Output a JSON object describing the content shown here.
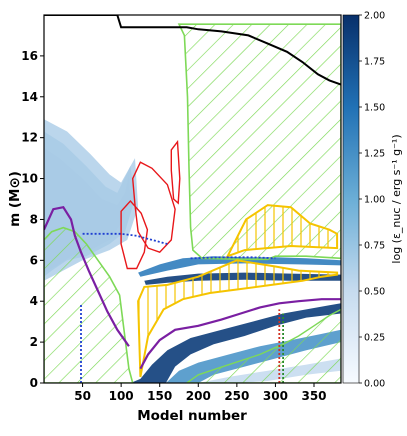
{
  "chart_data": {
    "type": "kippenhahn",
    "xlabel": "Model number",
    "ylabel": "m (M⊙)",
    "xlim": [
      0,
      385
    ],
    "ylim": [
      0,
      18
    ],
    "x_ticks": [
      50,
      100,
      150,
      200,
      250,
      300,
      350
    ],
    "y_ticks": [
      0,
      2,
      4,
      6,
      8,
      10,
      12,
      14,
      16
    ],
    "colorbar": {
      "label": "log (ε_nuc / erg s⁻¹ g⁻¹)",
      "range": [
        0.0,
        2.0
      ],
      "ticks": [
        "0.00",
        "0.25",
        "0.50",
        "0.75",
        "1.00",
        "1.25",
        "1.50",
        "1.75",
        "2.00"
      ],
      "colormap": "Blues"
    },
    "total_mass": {
      "color": "#000000",
      "points": [
        [
          0,
          18.0
        ],
        [
          95,
          18.0
        ],
        [
          100,
          17.4
        ],
        [
          185,
          17.4
        ],
        [
          200,
          17.3
        ],
        [
          230,
          17.2
        ],
        [
          265,
          17.0
        ],
        [
          290,
          16.6
        ],
        [
          315,
          16.2
        ],
        [
          335,
          15.7
        ],
        [
          355,
          15.1
        ],
        [
          370,
          14.8
        ],
        [
          385,
          14.6
        ]
      ]
    },
    "convective_envelope": {
      "color": "#7ed957",
      "hatch": "diagonal",
      "points": [
        [
          175,
          17.55
        ],
        [
          182,
          17.0
        ],
        [
          186,
          14.0
        ],
        [
          188,
          10.5
        ],
        [
          190,
          7.6
        ],
        [
          193,
          6.5
        ],
        [
          205,
          6.1
        ],
        [
          260,
          6.05
        ],
        [
          290,
          6.05
        ],
        [
          300,
          6.2
        ],
        [
          320,
          6.2
        ],
        [
          340,
          6.2
        ],
        [
          385,
          6.1
        ],
        [
          385,
          17.55
        ]
      ]
    },
    "convective_core": {
      "color": "#7ed957",
      "hatch": "diagonal",
      "points": [
        [
          0,
          0
        ],
        [
          0,
          7.0
        ],
        [
          10,
          7.4
        ],
        [
          25,
          7.6
        ],
        [
          40,
          7.4
        ],
        [
          55,
          6.8
        ],
        [
          70,
          6.0
        ],
        [
          85,
          5.2
        ],
        [
          98,
          4.3
        ],
        [
          110,
          0.7
        ],
        [
          115,
          0
        ]
      ]
    },
    "deep_convection": {
      "color": "#7ed957",
      "hatch": "diagonal",
      "points": [
        [
          185,
          0
        ],
        [
          200,
          0.4
        ],
        [
          240,
          0.9
        ],
        [
          280,
          1.4
        ],
        [
          310,
          1.9
        ],
        [
          330,
          2.3
        ],
        [
          350,
          2.8
        ],
        [
          370,
          3.3
        ],
        [
          385,
          3.6
        ],
        [
          385,
          0
        ]
      ]
    },
    "semiconvection": {
      "color": "#f5c400",
      "hatch": "vertical",
      "regions": [
        [
          [
            125,
            0.3
          ],
          [
            135,
            2.3
          ],
          [
            155,
            3.6
          ],
          [
            180,
            4.1
          ],
          [
            215,
            4.4
          ],
          [
            255,
            4.6
          ],
          [
            295,
            4.8
          ],
          [
            335,
            5.0
          ],
          [
            360,
            5.2
          ],
          [
            380,
            5.3
          ],
          [
            380,
            5.4
          ],
          [
            330,
            5.5
          ],
          [
            300,
            5.7
          ],
          [
            250,
            6.0
          ],
          [
            200,
            5.2
          ],
          [
            160,
            4.8
          ],
          [
            130,
            4.7
          ],
          [
            122,
            4.0
          ]
        ],
        [
          [
            238,
            6.2
          ],
          [
            262,
            8.0
          ],
          [
            274,
            8.3
          ],
          [
            290,
            8.7
          ],
          [
            320,
            8.6
          ],
          [
            345,
            7.8
          ],
          [
            370,
            7.5
          ],
          [
            380,
            7.3
          ],
          [
            380,
            6.6
          ],
          [
            320,
            6.7
          ],
          [
            260,
            6.5
          ]
        ]
      ]
    },
    "overshoot": {
      "color": "#e8171a",
      "regions": [
        [
          [
            115,
            10.0
          ],
          [
            125,
            10.8
          ],
          [
            140,
            10.5
          ],
          [
            160,
            9.7
          ],
          [
            170,
            8.5
          ],
          [
            165,
            7.0
          ],
          [
            150,
            6.4
          ],
          [
            135,
            6.6
          ],
          [
            122,
            7.4
          ],
          [
            118,
            8.7
          ]
        ],
        [
          [
            100,
            8.4
          ],
          [
            112,
            8.9
          ],
          [
            126,
            8.3
          ],
          [
            134,
            7.5
          ],
          [
            130,
            6.4
          ],
          [
            120,
            5.6
          ],
          [
            108,
            5.6
          ],
          [
            100,
            6.8
          ]
        ],
        [
          [
            165,
            11.4
          ],
          [
            173,
            11.8
          ],
          [
            176,
            10.0
          ],
          [
            174,
            8.8
          ],
          [
            168,
            9.0
          ],
          [
            165,
            10.4
          ]
        ]
      ]
    },
    "thermohaline": {
      "color": "#7a1fa2",
      "lines": [
        [
          [
            0,
            7.5
          ],
          [
            12,
            8.5
          ],
          [
            25,
            8.6
          ],
          [
            35,
            8.0
          ],
          [
            40,
            7.2
          ],
          [
            48,
            6.4
          ],
          [
            58,
            5.5
          ],
          [
            70,
            4.5
          ],
          [
            82,
            3.5
          ],
          [
            95,
            2.6
          ],
          [
            110,
            1.8
          ]
        ],
        [
          [
            125,
            0.7
          ],
          [
            135,
            1.4
          ],
          [
            150,
            2.1
          ],
          [
            170,
            2.6
          ],
          [
            200,
            2.8
          ],
          [
            230,
            3.1
          ],
          [
            255,
            3.4
          ],
          [
            280,
            3.7
          ],
          [
            305,
            3.9
          ],
          [
            330,
            4.0
          ],
          [
            360,
            4.1
          ],
          [
            385,
            4.1
          ]
        ]
      ]
    },
    "blue_dotted": {
      "color": "#1f3fd1",
      "lines": [
        [
          [
            50,
            7.3
          ],
          [
            100,
            7.3
          ],
          [
            120,
            7.2
          ],
          [
            140,
            7.0
          ],
          [
            160,
            6.8
          ]
        ],
        [
          [
            190,
            6.1
          ],
          [
            230,
            6.15
          ],
          [
            270,
            6.15
          ],
          [
            300,
            6.1
          ]
        ],
        [
          [
            48,
            0
          ],
          [
            48,
            3.9
          ]
        ]
      ]
    },
    "red_dotted": {
      "color": "#d03020",
      "lines": [
        [
          [
            305,
            0
          ],
          [
            305,
            3.6
          ]
        ]
      ]
    },
    "green_dotted": {
      "color": "#2a8a2a",
      "lines": [
        [
          [
            310,
            0
          ],
          [
            310,
            3.4
          ]
        ]
      ]
    },
    "energy_generation": {
      "colormap": "Blues",
      "bands": [
        {
          "level": 1.8,
          "points": [
            [
              0,
              11.5
            ],
            [
              20,
              11.0
            ],
            [
              50,
              10.0
            ],
            [
              75,
              9.0
            ],
            [
              95,
              8.7
            ],
            [
              105,
              9.3
            ],
            [
              110,
              10.2
            ],
            [
              112,
              9.0
            ],
            [
              100,
              7.8
            ],
            [
              85,
              7.0
            ],
            [
              60,
              6.5
            ],
            [
              35,
              6.2
            ],
            [
              15,
              5.7
            ],
            [
              0,
              5.4
            ]
          ]
        },
        {
          "level": 1.2,
          "points": [
            [
              0,
              12.3
            ],
            [
              25,
              11.7
            ],
            [
              55,
              10.6
            ],
            [
              80,
              9.6
            ],
            [
              95,
              9.3
            ],
            [
              112,
              10.6
            ],
            [
              118,
              9.0
            ],
            [
              105,
              7.4
            ],
            [
              85,
              6.8
            ],
            [
              55,
              6.2
            ],
            [
              30,
              6.0
            ],
            [
              10,
              5.5
            ],
            [
              0,
              5.2
            ]
          ]
        },
        {
          "level": 0.6,
          "points": [
            [
              0,
              12.9
            ],
            [
              30,
              12.3
            ],
            [
              60,
              11.2
            ],
            [
              85,
              10.2
            ],
            [
              100,
              9.8
            ],
            [
              118,
              11.0
            ],
            [
              122,
              8.6
            ],
            [
              108,
              7.0
            ],
            [
              85,
              6.5
            ],
            [
              50,
              6.0
            ],
            [
              20,
              5.4
            ],
            [
              0,
              5.0
            ]
          ]
        },
        {
          "level": 1.4,
          "points": [
            [
              122,
              5.4
            ],
            [
              150,
              5.8
            ],
            [
              180,
              6.1
            ],
            [
              220,
              6.2
            ],
            [
              260,
              6.15
            ],
            [
              300,
              6.15
            ],
            [
              340,
              6.1
            ],
            [
              385,
              6.0
            ],
            [
              385,
              5.75
            ],
            [
              330,
              5.8
            ],
            [
              260,
              5.85
            ],
            [
              200,
              5.8
            ],
            [
              160,
              5.5
            ],
            [
              125,
              5.2
            ]
          ]
        },
        {
          "level": 1.9,
          "points": [
            [
              130,
              5.0
            ],
            [
              160,
              5.2
            ],
            [
              200,
              5.35
            ],
            [
              260,
              5.4
            ],
            [
              320,
              5.35
            ],
            [
              385,
              5.3
            ],
            [
              385,
              5.0
            ],
            [
              320,
              5.0
            ],
            [
              260,
              5.05
            ],
            [
              200,
              5.0
            ],
            [
              160,
              4.9
            ],
            [
              132,
              4.8
            ]
          ]
        },
        {
          "level": 1.9,
          "points": [
            [
              112,
              0
            ],
            [
              125,
              0.2
            ],
            [
              140,
              0.9
            ],
            [
              160,
              1.6
            ],
            [
              190,
              2.2
            ],
            [
              220,
              2.5
            ],
            [
              250,
              2.8
            ],
            [
              280,
              3.1
            ],
            [
              310,
              3.4
            ],
            [
              340,
              3.6
            ],
            [
              370,
              3.8
            ],
            [
              385,
              3.9
            ],
            [
              385,
              3.4
            ],
            [
              340,
              3.2
            ],
            [
              300,
              2.8
            ],
            [
              260,
              2.3
            ],
            [
              220,
              1.9
            ],
            [
              190,
              1.4
            ],
            [
              170,
              0.8
            ],
            [
              158,
              0
            ]
          ]
        },
        {
          "level": 1.2,
          "points": [
            [
              158,
              0
            ],
            [
              175,
              0.6
            ],
            [
              200,
              1.0
            ],
            [
              240,
              1.4
            ],
            [
              280,
              1.8
            ],
            [
              320,
              2.1
            ],
            [
              360,
              2.4
            ],
            [
              385,
              2.6
            ],
            [
              385,
              2.0
            ],
            [
              340,
              1.6
            ],
            [
              300,
              1.2
            ],
            [
              260,
              0.8
            ],
            [
              220,
              0.4
            ],
            [
              200,
              0
            ]
          ]
        },
        {
          "level": 0.5,
          "points": [
            [
              200,
              0
            ],
            [
              240,
              0.3
            ],
            [
              290,
              0.6
            ],
            [
              340,
              0.9
            ],
            [
              385,
              1.2
            ],
            [
              385,
              0.6
            ],
            [
              340,
              0.4
            ],
            [
              290,
              0.1
            ],
            [
              250,
              0
            ]
          ]
        }
      ]
    }
  }
}
